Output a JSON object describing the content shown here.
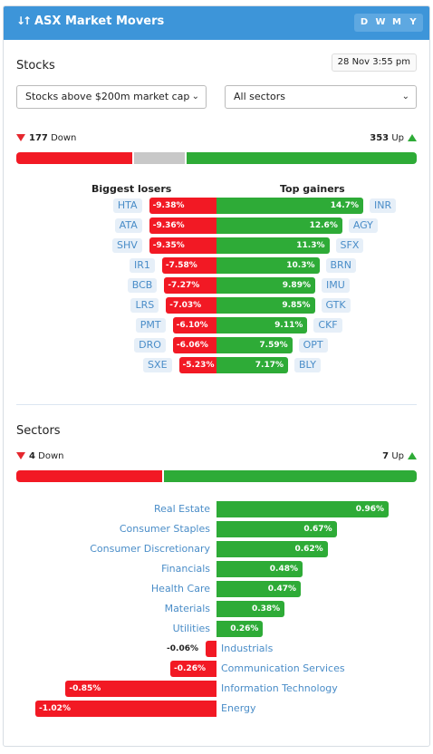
{
  "header": {
    "title": "ASX Market Movers",
    "sort_icon": "sort-arrows-icon",
    "periods": [
      "D",
      "W",
      "M",
      "Y"
    ]
  },
  "stocks": {
    "title": "Stocks",
    "timestamp": "28 Nov 3:55 pm",
    "filter_cap": "Stocks above $200m market cap",
    "filter_sector": "All sectors",
    "down_count": "177",
    "down_label": "Down",
    "up_count": "353",
    "up_label": "Up",
    "ratio": {
      "down": 177,
      "unchanged": 80,
      "up": 353
    },
    "losers_title": "Biggest losers",
    "gainers_title": "Top gainers",
    "losers": [
      {
        "ticker": "HTA",
        "change": "-9.38%",
        "value": -9.38
      },
      {
        "ticker": "ATA",
        "change": "-9.36%",
        "value": -9.36
      },
      {
        "ticker": "SHV",
        "change": "-9.35%",
        "value": -9.35
      },
      {
        "ticker": "IR1",
        "change": "-7.58%",
        "value": -7.58
      },
      {
        "ticker": "BCB",
        "change": "-7.27%",
        "value": -7.27
      },
      {
        "ticker": "LRS",
        "change": "-7.03%",
        "value": -7.03
      },
      {
        "ticker": "PMT",
        "change": "-6.10%",
        "value": -6.1
      },
      {
        "ticker": "DRO",
        "change": "-6.06%",
        "value": -6.06
      },
      {
        "ticker": "SXE",
        "change": "-5.23%",
        "value": -5.23
      }
    ],
    "gainers": [
      {
        "ticker": "INR",
        "change": "14.7%",
        "value": 14.7
      },
      {
        "ticker": "AGY",
        "change": "12.6%",
        "value": 12.6
      },
      {
        "ticker": "SFX",
        "change": "11.3%",
        "value": 11.3
      },
      {
        "ticker": "BRN",
        "change": "10.3%",
        "value": 10.3
      },
      {
        "ticker": "IMU",
        "change": "9.89%",
        "value": 9.89
      },
      {
        "ticker": "GTK",
        "change": "9.85%",
        "value": 9.85
      },
      {
        "ticker": "CKF",
        "change": "9.11%",
        "value": 9.11
      },
      {
        "ticker": "OPT",
        "change": "7.59%",
        "value": 7.59
      },
      {
        "ticker": "BLY",
        "change": "7.17%",
        "value": 7.17
      }
    ]
  },
  "sectors": {
    "title": "Sectors",
    "down_count": "4",
    "down_label": "Down",
    "up_count": "7",
    "up_label": "Up",
    "ratio": {
      "down": 4,
      "up": 7
    },
    "items": [
      {
        "name": "Real Estate",
        "change": "0.96%",
        "value": 0.96
      },
      {
        "name": "Consumer Staples",
        "change": "0.67%",
        "value": 0.67
      },
      {
        "name": "Consumer Discretionary",
        "change": "0.62%",
        "value": 0.62
      },
      {
        "name": "Financials",
        "change": "0.48%",
        "value": 0.48
      },
      {
        "name": "Health Care",
        "change": "0.47%",
        "value": 0.47
      },
      {
        "name": "Materials",
        "change": "0.38%",
        "value": 0.38
      },
      {
        "name": "Utilities",
        "change": "0.26%",
        "value": 0.26
      },
      {
        "name": "Industrials",
        "change": "-0.06%",
        "value": -0.06
      },
      {
        "name": "Communication Services",
        "change": "-0.26%",
        "value": -0.26
      },
      {
        "name": "Information Technology",
        "change": "-0.85%",
        "value": -0.85
      },
      {
        "name": "Energy",
        "change": "-1.02%",
        "value": -1.02
      }
    ]
  },
  "colors": {
    "header": "#3d95d9",
    "down": "#f21924",
    "up": "#2eab37",
    "unchanged": "#c8c8c8",
    "link": "#4a8dc8"
  }
}
